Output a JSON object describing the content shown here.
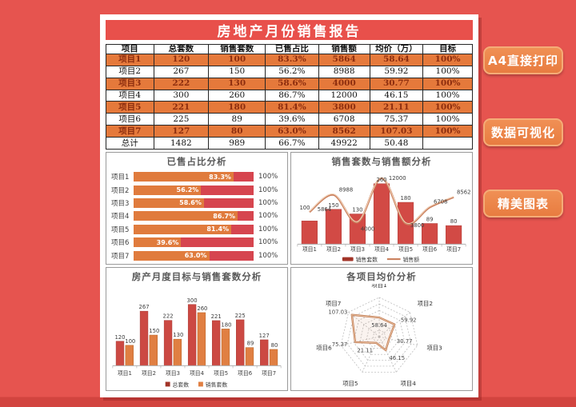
{
  "title": "房地产月份销售报告",
  "side_buttons": [
    {
      "label": "A4直接打印"
    },
    {
      "label": "数据可视化"
    },
    {
      "label": "精美图表"
    }
  ],
  "table": {
    "headers": [
      "项目",
      "总套数",
      "销售套数",
      "已售占比",
      "销售额",
      "均价（万）",
      "目标"
    ],
    "rows": [
      [
        "项目1",
        "120",
        "100",
        "83.3%",
        "5864",
        "58.64",
        "100%"
      ],
      [
        "项目2",
        "267",
        "150",
        "56.2%",
        "8988",
        "59.92",
        "100%"
      ],
      [
        "项目3",
        "222",
        "130",
        "58.6%",
        "4000",
        "30.77",
        "100%"
      ],
      [
        "项目4",
        "300",
        "260",
        "86.7%",
        "12000",
        "46.15",
        "100%"
      ],
      [
        "项目5",
        "221",
        "180",
        "81.4%",
        "3800",
        "21.11",
        "100%"
      ],
      [
        "项目6",
        "225",
        "89",
        "39.6%",
        "6708",
        "75.37",
        "100%"
      ],
      [
        "项目7",
        "127",
        "80",
        "63.0%",
        "8562",
        "107.03",
        "100%"
      ],
      [
        "总计",
        "1482",
        "989",
        "66.7%",
        "49922",
        "50.48",
        ""
      ]
    ]
  },
  "colors": {
    "background": "#e6544f",
    "banner": "#e8504b",
    "row_orange": "#e5793b",
    "row_text": "#8d2d0e",
    "bar_orange": "#e07b3d",
    "bar_crimson": "#d6454f",
    "series_red": "#d24a45",
    "series_orange": "#e07f42",
    "line_orange": "#cb8260",
    "radar_stroke": "#c07a55",
    "legend_dark_red": "#a23428",
    "button_orange": "#e87c40"
  },
  "chart_data": [
    {
      "type": "bar",
      "orientation": "horizontal-stacked",
      "title": "已售占比分析",
      "categories": [
        "项目1",
        "项目2",
        "项目3",
        "项目4",
        "项目5",
        "项目6",
        "项目7"
      ],
      "values": [
        83.3,
        56.2,
        58.6,
        86.7,
        81.4,
        39.6,
        63.0
      ],
      "labels": [
        "83.3%",
        "56.2%",
        "58.6%",
        "86.7%",
        "81.4%",
        "39.6%",
        "63.0%"
      ],
      "total_label": "100%",
      "xlim": [
        0,
        100
      ],
      "grid": false
    },
    {
      "type": "combo",
      "title": "销售套数与销售额分析",
      "categories": [
        "项目1",
        "项目2",
        "项目3",
        "项目4",
        "项目5",
        "项目6",
        "项目7"
      ],
      "series": [
        {
          "name": "销售套数",
          "kind": "bar",
          "values": [
            100,
            150,
            130,
            260,
            180,
            89,
            80
          ],
          "color": "#d24a45"
        },
        {
          "name": "销售额",
          "kind": "line",
          "values": [
            5864,
            8988,
            4000,
            12000,
            3800,
            6708,
            8562
          ],
          "color": "#cb8260"
        }
      ],
      "bar_ylim": [
        0,
        260
      ],
      "line_ylim": [
        0,
        12000
      ],
      "grid": false,
      "legend_position": "bottom"
    },
    {
      "type": "bar",
      "title": "房产月度目标与销售套数分析",
      "categories": [
        "项目1",
        "项目2",
        "项目3",
        "项目4",
        "项目5",
        "项目6",
        "项目7"
      ],
      "series": [
        {
          "name": "总套数",
          "values": [
            120,
            267,
            222,
            300,
            221,
            225,
            127
          ],
          "color": "#cc4943"
        },
        {
          "name": "销售套数",
          "values": [
            100,
            150,
            130,
            260,
            180,
            89,
            80
          ],
          "color": "#e07f42"
        }
      ],
      "ylim": [
        0,
        300
      ],
      "grid": false,
      "legend_position": "bottom"
    },
    {
      "type": "radar",
      "title": "各项目均价分析",
      "categories": [
        "项目1",
        "项目2",
        "项目3",
        "项目4",
        "项目5",
        "项目6",
        "项目7"
      ],
      "values": [
        58.64,
        59.92,
        30.77,
        46.15,
        21.11,
        75.37,
        107.03
      ],
      "max": 120,
      "rings": 6,
      "grid": "dashed"
    }
  ]
}
